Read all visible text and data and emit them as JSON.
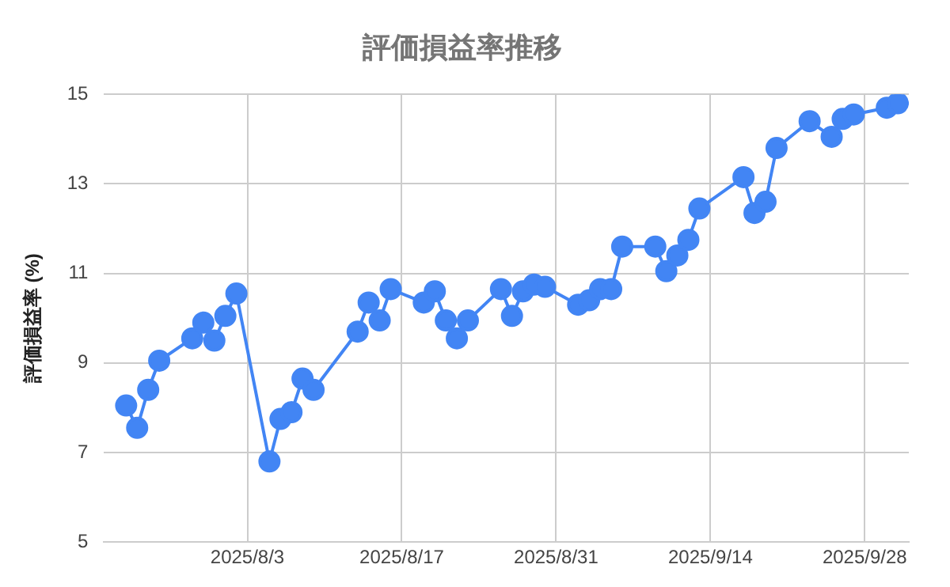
{
  "chart_data": {
    "type": "line",
    "title": "評価損益率推移",
    "ylabel": "評価損益率 (%)",
    "x": [
      "2025-07-23",
      "2025-07-24",
      "2025-07-25",
      "2025-07-26",
      "2025-07-29",
      "2025-07-30",
      "2025-07-31",
      "2025-08-01",
      "2025-08-02",
      "2025-08-05",
      "2025-08-06",
      "2025-08-07",
      "2025-08-08",
      "2025-08-09",
      "2025-08-13",
      "2025-08-14",
      "2025-08-15",
      "2025-08-16",
      "2025-08-19",
      "2025-08-20",
      "2025-08-21",
      "2025-08-22",
      "2025-08-23",
      "2025-08-26",
      "2025-08-27",
      "2025-08-28",
      "2025-08-29",
      "2025-08-30",
      "2025-09-02",
      "2025-09-03",
      "2025-09-04",
      "2025-09-05",
      "2025-09-06",
      "2025-09-09",
      "2025-09-10",
      "2025-09-11",
      "2025-09-12",
      "2025-09-13",
      "2025-09-17",
      "2025-09-18",
      "2025-09-19",
      "2025-09-20",
      "2025-09-23",
      "2025-09-25",
      "2025-09-26",
      "2025-09-27",
      "2025-09-30",
      "2025-10-01"
    ],
    "series": [
      {
        "color": "#4285f4",
        "values": [
          8.05,
          7.55,
          8.4,
          9.05,
          9.55,
          9.9,
          9.5,
          10.05,
          10.55,
          6.8,
          7.75,
          7.9,
          8.65,
          8.4,
          9.7,
          10.35,
          9.95,
          10.65,
          10.35,
          10.6,
          9.95,
          9.55,
          9.95,
          10.65,
          10.05,
          10.6,
          10.75,
          10.7,
          10.3,
          10.4,
          10.65,
          10.65,
          11.6,
          11.6,
          11.05,
          11.4,
          11.75,
          12.45,
          13.15,
          12.35,
          12.6,
          13.8,
          14.4,
          14.05,
          14.45,
          14.55,
          14.7,
          14.8
        ]
      }
    ],
    "xlim": [
      "2025-07-21",
      "2025-10-02"
    ],
    "xticks": [
      {
        "value": "2025-08-03",
        "label": "2025/8/3"
      },
      {
        "value": "2025-08-17",
        "label": "2025/8/17"
      },
      {
        "value": "2025-08-31",
        "label": "2025/8/31"
      },
      {
        "value": "2025-09-14",
        "label": "2025/9/14"
      },
      {
        "value": "2025-09-28",
        "label": "2025/9/28"
      }
    ],
    "ylim": [
      5,
      15
    ],
    "yticks": [
      5,
      7,
      9,
      11,
      13,
      15
    ],
    "grid": true,
    "legend": false,
    "marker": "circle",
    "line_style": "solid"
  }
}
